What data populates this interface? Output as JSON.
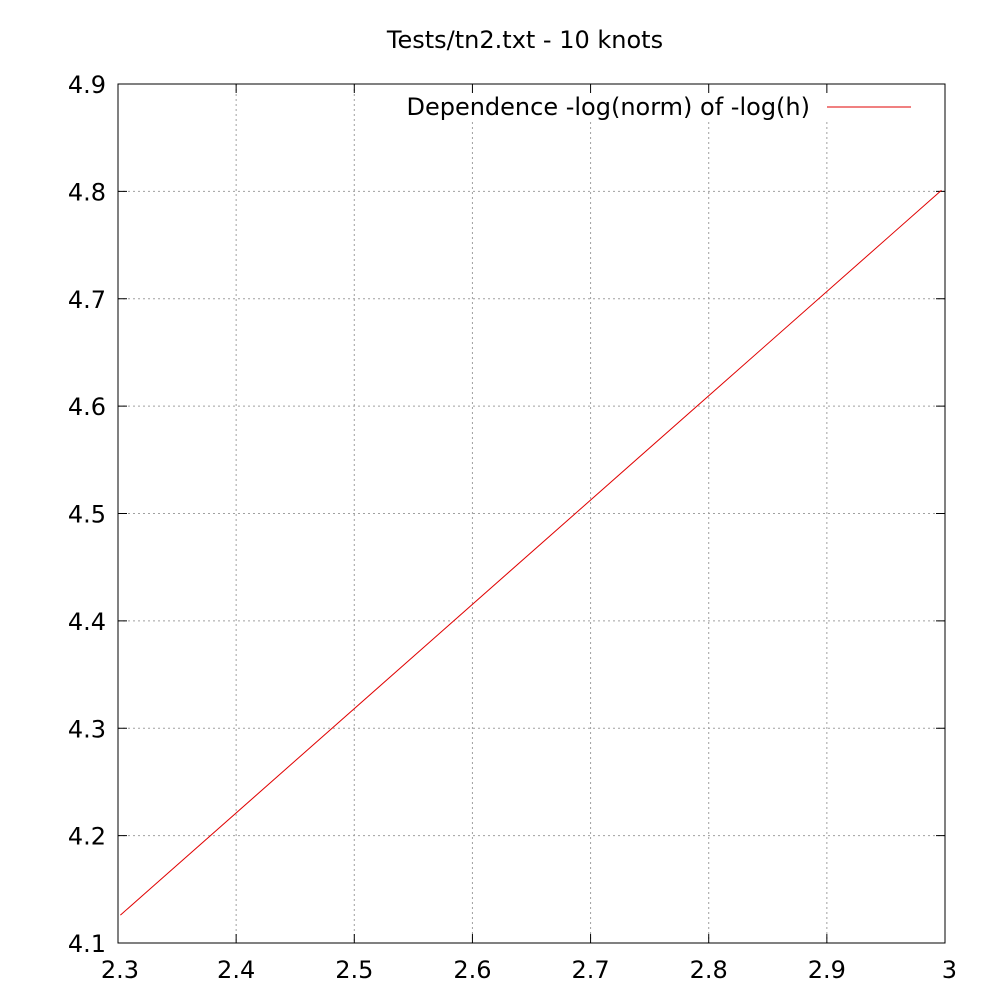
{
  "chart_data": {
    "type": "line",
    "title": "Tests/tn2.txt - 10 knots",
    "xlabel": "",
    "ylabel": "",
    "xlim": [
      2.3,
      3.0
    ],
    "ylim": [
      4.1,
      4.9
    ],
    "xticks": [
      2.3,
      2.4,
      2.5,
      2.6,
      2.7,
      2.8,
      2.9,
      3.0
    ],
    "xtick_labels": [
      "2.3",
      "2.4",
      "2.5",
      "2.6",
      "2.7",
      "2.8",
      "2.9",
      "3"
    ],
    "yticks": [
      4.1,
      4.2,
      4.3,
      4.4,
      4.5,
      4.6,
      4.7,
      4.8,
      4.9
    ],
    "ytick_labels": [
      "4.1",
      "4.2",
      "4.3",
      "4.4",
      "4.5",
      "4.6",
      "4.7",
      "4.8",
      "4.9"
    ],
    "grid": true,
    "legend_position": "top-right",
    "series": [
      {
        "name": "Dependence -log(norm) of -log(h)",
        "color": "#e00000",
        "x": [
          2.302,
          2.997
        ],
        "y": [
          4.126,
          4.801
        ]
      }
    ]
  }
}
